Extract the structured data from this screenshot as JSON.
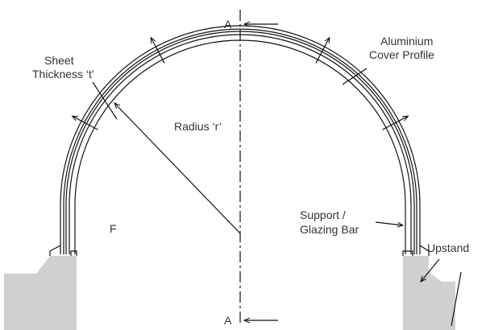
{
  "section_marks": [
    "A",
    "A"
  ],
  "labels": {
    "aluminium_cover_profile": [
      "Aluminium",
      "Cover Profile"
    ],
    "sheet_thickness": [
      "Sheet",
      "Thickness ‘t’"
    ],
    "radius": "Radius ‘r’",
    "support_glazing_bar": [
      "Support /",
      "Glazing Bar"
    ],
    "upstand": "Upstand",
    "f": "F"
  }
}
